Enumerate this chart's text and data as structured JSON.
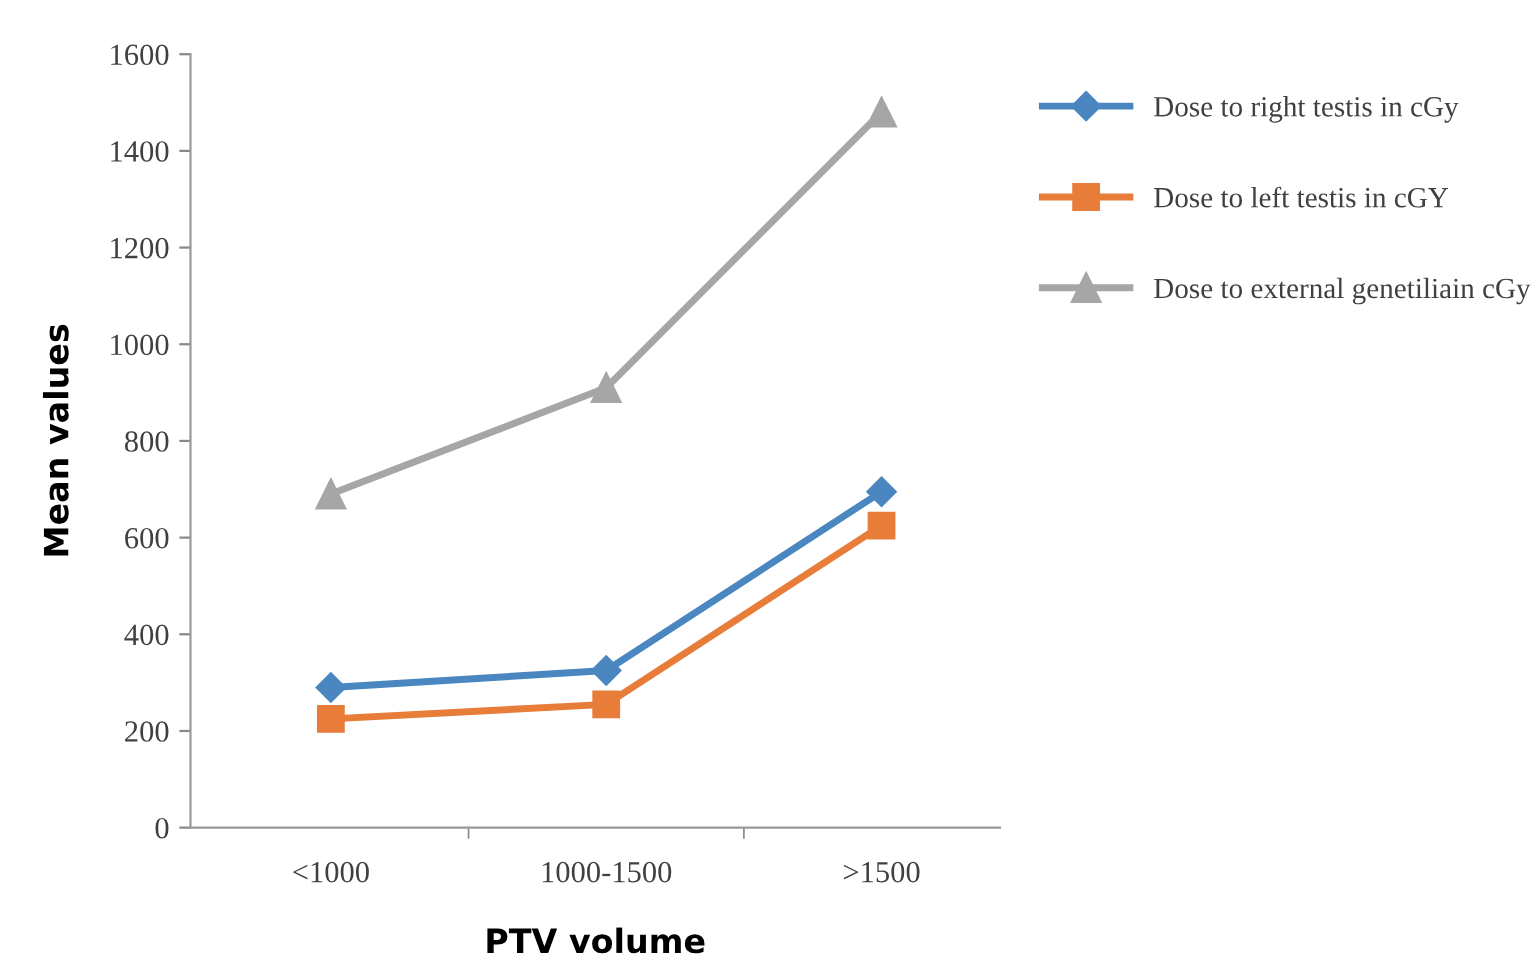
{
  "chart_data": {
    "type": "line",
    "xlabel": "PTV volume",
    "ylabel": "Mean values",
    "categories": [
      "<1000",
      "1000-1500",
      ">1500"
    ],
    "series": [
      {
        "name": "Dose to right testis in cGy",
        "color": "#4a86c0",
        "marker": "diamond",
        "values": [
          290,
          325,
          695
        ]
      },
      {
        "name": "Dose to left testis in cGY",
        "color": "#e87d3a",
        "marker": "square",
        "values": [
          225,
          255,
          625
        ]
      },
      {
        "name": "Dose to external genetiliain cGy",
        "color": "#a6a6a6",
        "marker": "triangle",
        "values": [
          690,
          910,
          1480
        ]
      }
    ],
    "ylim": [
      0,
      1600
    ],
    "yticks": [
      0,
      200,
      400,
      600,
      800,
      1000,
      1200,
      1400,
      1600
    ],
    "grid": false,
    "legend": "right",
    "line_style": "solid"
  }
}
